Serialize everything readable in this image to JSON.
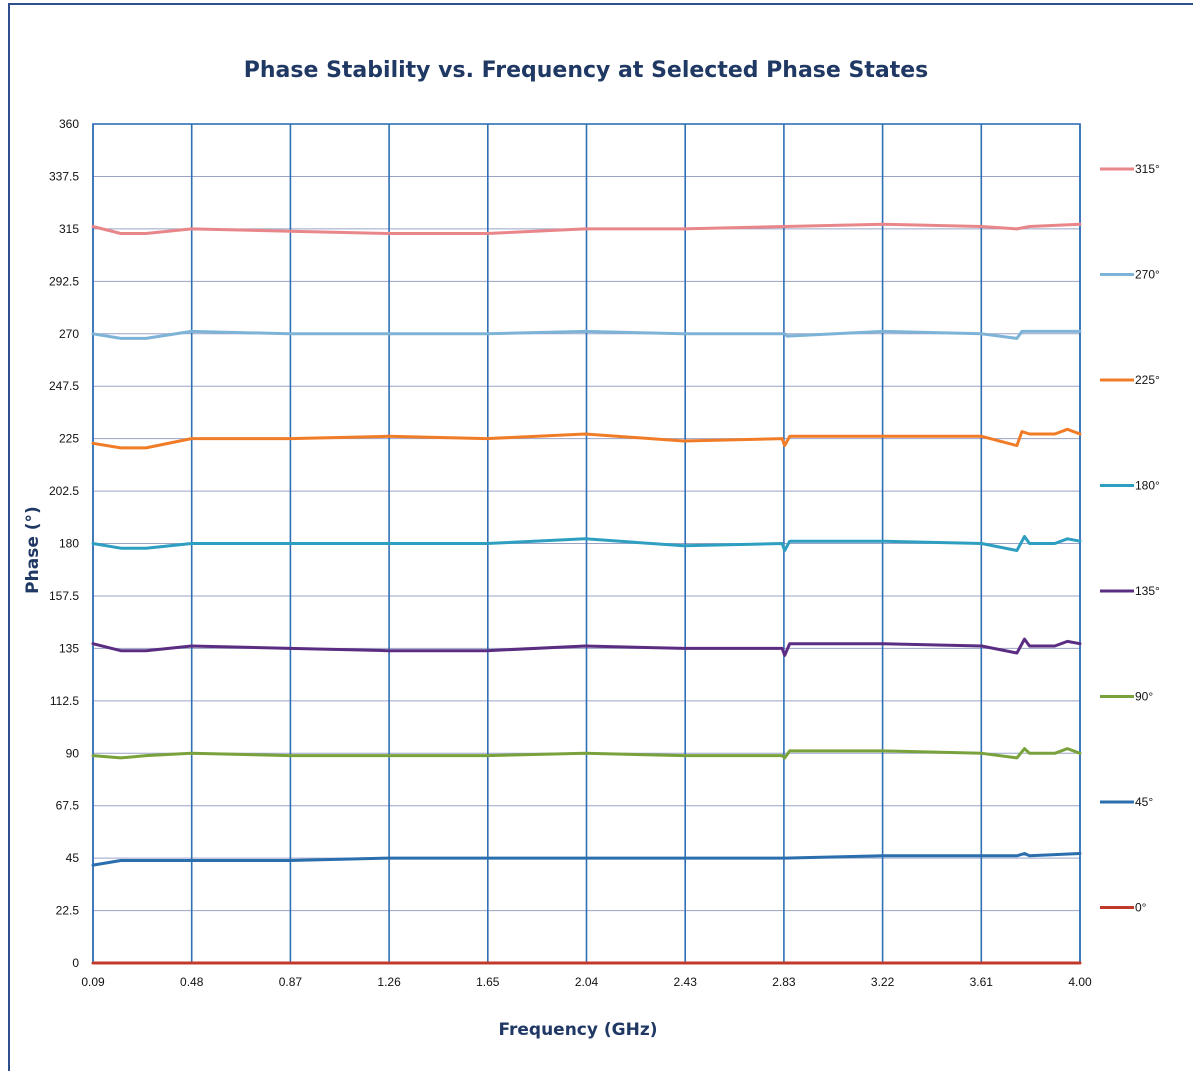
{
  "chart_data": {
    "type": "line",
    "title": "Phase Stability vs. Frequency at Selected Phase States",
    "xlabel": "Frequency (GHz)",
    "ylabel": "Phase (°)",
    "x_ticks": [
      "0.09",
      "0.48",
      "0.87",
      "1.26",
      "1.65",
      "2.04",
      "2.43",
      "2.83",
      "3.22",
      "3.61",
      "4.00"
    ],
    "y_ticks": [
      "0",
      "22.5",
      "45",
      "67.5",
      "90",
      "112.5",
      "135",
      "157.5",
      "180",
      "202.5",
      "225",
      "247.5",
      "270",
      "292.5",
      "315",
      "337.5",
      "360"
    ],
    "xlim": [
      0.09,
      4.0
    ],
    "ylim": [
      0,
      360
    ],
    "grid": {
      "vertical_major": true,
      "horizontal": true
    },
    "legend_position": "right",
    "series": [
      {
        "name": "315°",
        "color": "#e8868a",
        "x": [
          0.09,
          0.2,
          0.3,
          0.48,
          0.87,
          1.26,
          1.65,
          2.04,
          2.43,
          2.83,
          3.22,
          3.61,
          3.75,
          3.8,
          4.0
        ],
        "y": [
          316,
          313,
          313,
          315,
          314,
          313,
          313,
          315,
          315,
          316,
          317,
          316,
          315,
          316,
          317
        ]
      },
      {
        "name": "270°",
        "color": "#7eb3d8",
        "x": [
          0.09,
          0.2,
          0.3,
          0.48,
          0.87,
          1.26,
          1.65,
          2.04,
          2.43,
          2.83,
          2.84,
          3.22,
          3.61,
          3.75,
          3.77,
          3.8,
          4.0
        ],
        "y": [
          270,
          268,
          268,
          271,
          270,
          270,
          270,
          271,
          270,
          270,
          269,
          271,
          270,
          268,
          271,
          271,
          271
        ]
      },
      {
        "name": "225°",
        "color": "#f07c28",
        "x": [
          0.09,
          0.2,
          0.3,
          0.48,
          0.87,
          1.26,
          1.65,
          2.04,
          2.43,
          2.82,
          2.83,
          2.85,
          3.22,
          3.61,
          3.75,
          3.77,
          3.8,
          3.9,
          3.95,
          4.0
        ],
        "y": [
          223,
          221,
          221,
          225,
          225,
          226,
          225,
          227,
          224,
          225,
          222,
          226,
          226,
          226,
          222,
          228,
          227,
          227,
          229,
          227
        ]
      },
      {
        "name": "180°",
        "color": "#2e9fc1",
        "x": [
          0.09,
          0.2,
          0.3,
          0.48,
          0.87,
          1.26,
          1.65,
          2.04,
          2.43,
          2.82,
          2.83,
          2.85,
          3.22,
          3.61,
          3.75,
          3.78,
          3.8,
          3.9,
          3.95,
          4.0
        ],
        "y": [
          180,
          178,
          178,
          180,
          180,
          180,
          180,
          182,
          179,
          180,
          177,
          181,
          181,
          180,
          177,
          183,
          180,
          180,
          182,
          181
        ]
      },
      {
        "name": "135°",
        "color": "#5b2d82",
        "x": [
          0.09,
          0.2,
          0.3,
          0.48,
          0.87,
          1.26,
          1.65,
          2.04,
          2.43,
          2.82,
          2.83,
          2.85,
          3.22,
          3.61,
          3.75,
          3.78,
          3.8,
          3.9,
          3.95,
          4.0
        ],
        "y": [
          137,
          134,
          134,
          136,
          135,
          134,
          134,
          136,
          135,
          135,
          132,
          137,
          137,
          136,
          133,
          139,
          136,
          136,
          138,
          137
        ]
      },
      {
        "name": "90°",
        "color": "#7aa23c",
        "x": [
          0.09,
          0.2,
          0.3,
          0.48,
          0.87,
          1.26,
          1.65,
          2.04,
          2.43,
          2.82,
          2.83,
          2.85,
          3.22,
          3.61,
          3.75,
          3.78,
          3.8,
          3.9,
          3.95,
          4.0
        ],
        "y": [
          89,
          88,
          89,
          90,
          89,
          89,
          89,
          90,
          89,
          89,
          88,
          91,
          91,
          90,
          88,
          92,
          90,
          90,
          92,
          90
        ]
      },
      {
        "name": "45°",
        "color": "#2a6eae",
        "x": [
          0.09,
          0.2,
          0.3,
          0.48,
          0.87,
          1.26,
          1.65,
          2.04,
          2.43,
          2.83,
          3.22,
          3.61,
          3.75,
          3.78,
          3.8,
          4.0
        ],
        "y": [
          42,
          44,
          44,
          44,
          44,
          45,
          45,
          45,
          45,
          45,
          46,
          46,
          46,
          47,
          46,
          47
        ]
      },
      {
        "name": "0°",
        "color": "#c0392b",
        "x": [
          0.09,
          1.0,
          2.0,
          3.0,
          4.0
        ],
        "y": [
          0,
          0,
          0,
          0,
          0
        ]
      }
    ]
  }
}
